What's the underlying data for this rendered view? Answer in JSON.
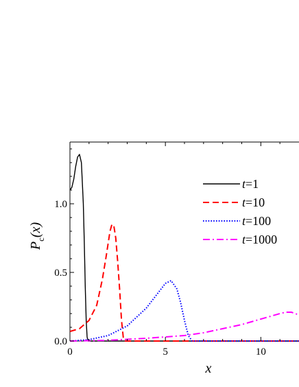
{
  "chart_data": {
    "type": "line",
    "title": "",
    "xlabel": "x",
    "ylabel": {
      "main": "P",
      "subscript": "c",
      "arg": "(x)"
    },
    "xlim": [
      0,
      12
    ],
    "ylim": [
      0,
      1.45
    ],
    "xticks": [
      0,
      5,
      10
    ],
    "yticks": [
      0.0,
      0.5,
      1.0
    ],
    "xtick_labels": [
      "0",
      "5",
      "10"
    ],
    "ytick_labels": [
      "0.0",
      "0.5",
      "1.0"
    ],
    "grid": false,
    "legend_position": "right",
    "series": [
      {
        "name": "t=1",
        "legend_var": "t",
        "legend_value": "=1",
        "color": "#000000",
        "style": "solid",
        "x": [
          0,
          0.1,
          0.2,
          0.3,
          0.4,
          0.5,
          0.6,
          0.7,
          0.75,
          0.8,
          0.85,
          0.9,
          0.95,
          1.0,
          1.1,
          12
        ],
        "y": [
          1.1,
          1.12,
          1.18,
          1.27,
          1.34,
          1.36,
          1.3,
          1.0,
          0.72,
          0.4,
          0.15,
          0.03,
          0.0,
          0.0,
          0.0,
          0.0
        ]
      },
      {
        "name": "t=10",
        "legend_var": "t",
        "legend_value": "=10",
        "color": "#ff0000",
        "style": "dashed",
        "x": [
          0,
          0.5,
          1.0,
          1.4,
          1.7,
          1.9,
          2.1,
          2.2,
          2.3,
          2.4,
          2.5,
          2.6,
          2.7,
          2.8,
          2.9,
          12
        ],
        "y": [
          0.07,
          0.09,
          0.15,
          0.26,
          0.45,
          0.62,
          0.8,
          0.85,
          0.84,
          0.75,
          0.58,
          0.38,
          0.15,
          0.02,
          0.0,
          0.0
        ]
      },
      {
        "name": "t=100",
        "legend_var": "t",
        "legend_value": "=100",
        "color": "#0000ff",
        "style": "dotted",
        "x": [
          0,
          1,
          2,
          3,
          4,
          4.5,
          5.0,
          5.3,
          5.6,
          5.8,
          6.0,
          6.2,
          6.4,
          12
        ],
        "y": [
          0.0,
          0.01,
          0.04,
          0.11,
          0.24,
          0.33,
          0.42,
          0.44,
          0.38,
          0.28,
          0.15,
          0.04,
          0.0,
          0.0
        ]
      },
      {
        "name": "t=1000",
        "legend_var": "t",
        "legend_value": "=1000",
        "color": "#ff00ff",
        "style": "dashdot",
        "x": [
          0,
          2,
          4,
          6,
          7,
          8,
          9,
          10,
          10.5,
          11,
          11.3,
          11.6,
          12
        ],
        "y": [
          0.0,
          0.005,
          0.02,
          0.04,
          0.06,
          0.09,
          0.12,
          0.16,
          0.18,
          0.2,
          0.21,
          0.21,
          0.19
        ]
      }
    ]
  }
}
